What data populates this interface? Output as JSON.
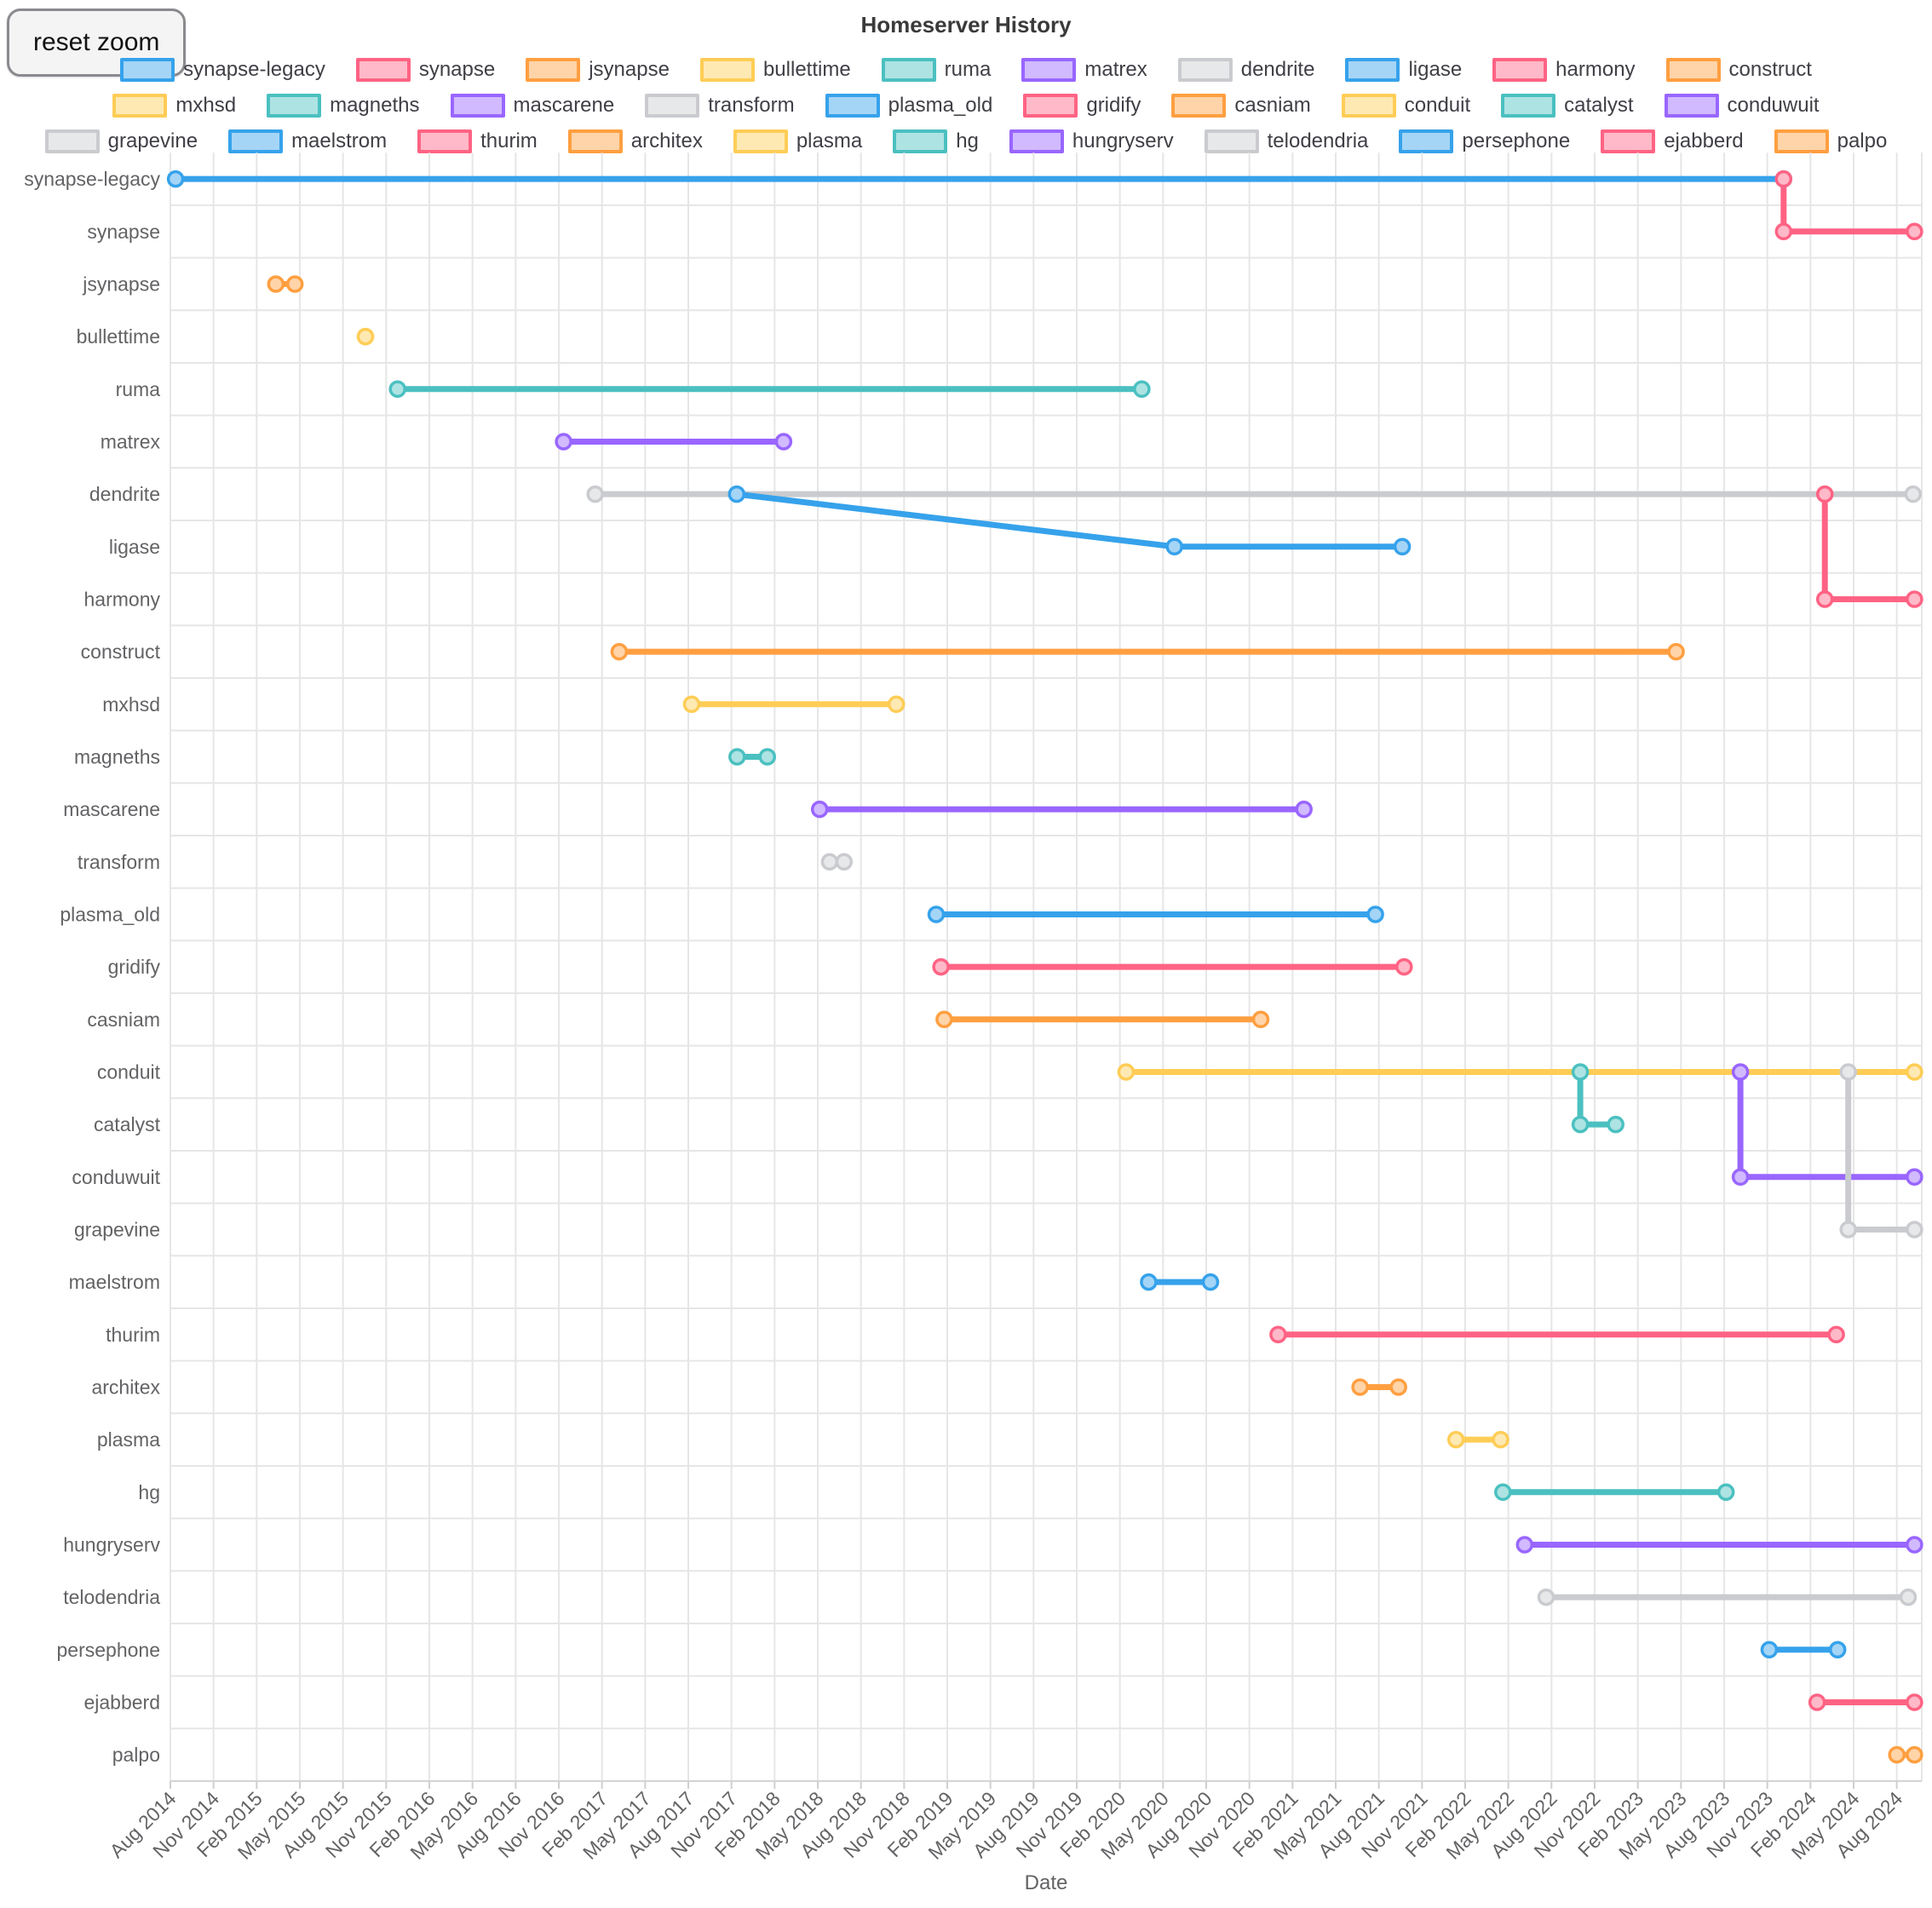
{
  "header": {
    "title": "Homeserver History",
    "reset_button": "reset zoom",
    "xlabel": "Date"
  },
  "chart_data": {
    "type": "line",
    "title": "Homeserver History",
    "xlabel": "Date",
    "legend_position": "top",
    "grid": true,
    "x_axis": {
      "start": "2014-08-01",
      "end_tick": "2024-08-01",
      "tick_interval_months": 3,
      "tick_labels": [
        "Aug 2014",
        "Nov 2014",
        "Feb 2015",
        "May 2015",
        "Aug 2015",
        "Nov 2015",
        "Feb 2016",
        "May 2016",
        "Aug 2016",
        "Nov 2016",
        "Feb 2017",
        "May 2017",
        "Aug 2017",
        "Nov 2017",
        "Feb 2018",
        "May 2018",
        "Aug 2018",
        "Nov 2018",
        "Feb 2019",
        "May 2019",
        "Aug 2019",
        "Nov 2019",
        "Feb 2020",
        "May 2020",
        "Aug 2020",
        "Nov 2020",
        "Feb 2021",
        "May 2021",
        "Aug 2021",
        "Nov 2021",
        "Feb 2022",
        "May 2022",
        "Aug 2022",
        "Nov 2022",
        "Feb 2023",
        "May 2023",
        "Aug 2023",
        "Nov 2023",
        "Feb 2024",
        "May 2024",
        "Aug 2024"
      ]
    },
    "categories": [
      "synapse-legacy",
      "synapse",
      "jsynapse",
      "bullettime",
      "ruma",
      "matrex",
      "dendrite",
      "ligase",
      "harmony",
      "construct",
      "mxhsd",
      "magneths",
      "mascarene",
      "transform",
      "plasma_old",
      "gridify",
      "casniam",
      "conduit",
      "catalyst",
      "conduwuit",
      "grapevine",
      "maelstrom",
      "thurim",
      "architex",
      "plasma",
      "hg",
      "hungryserv",
      "telodendria",
      "persephone",
      "ejabberd",
      "palpo"
    ],
    "palette": [
      "#36A2EB",
      "#FF6384",
      "#FF9F40",
      "#FFCD56",
      "#4BC0C0",
      "#9966FF",
      "#C9CBCF"
    ],
    "series": [
      {
        "name": "synapse-legacy",
        "color": "#36A2EB",
        "points": [
          {
            "date": "2014-08-12",
            "row": "synapse-legacy"
          },
          {
            "date": "2023-12-05",
            "row": "synapse-legacy"
          }
        ]
      },
      {
        "name": "synapse",
        "color": "#FF6384",
        "points": [
          {
            "date": "2023-12-05",
            "row": "synapse-legacy"
          },
          {
            "date": "2023-12-05",
            "row": "synapse"
          },
          {
            "date": "2024-09-08",
            "row": "synapse"
          }
        ]
      },
      {
        "name": "jsynapse",
        "color": "#FF9F40",
        "points": [
          {
            "date": "2015-03-11",
            "row": "jsynapse"
          },
          {
            "date": "2015-04-21",
            "row": "jsynapse"
          }
        ]
      },
      {
        "name": "bullettime",
        "color": "#FFCD56",
        "points": [
          {
            "date": "2015-09-18",
            "row": "bullettime"
          },
          {
            "date": "2015-09-18",
            "row": "bullettime"
          }
        ]
      },
      {
        "name": "ruma",
        "color": "#4BC0C0",
        "points": [
          {
            "date": "2015-11-25",
            "row": "ruma"
          },
          {
            "date": "2020-03-17",
            "row": "ruma"
          }
        ]
      },
      {
        "name": "matrex",
        "color": "#9966FF",
        "points": [
          {
            "date": "2016-11-11",
            "row": "matrex"
          },
          {
            "date": "2018-02-20",
            "row": "matrex"
          }
        ]
      },
      {
        "name": "dendrite",
        "color": "#C9CBCF",
        "points": [
          {
            "date": "2017-01-17",
            "row": "dendrite"
          },
          {
            "date": "2024-09-05",
            "row": "dendrite"
          }
        ]
      },
      {
        "name": "ligase",
        "color": "#36A2EB",
        "points": [
          {
            "date": "2017-11-12",
            "row": "dendrite"
          },
          {
            "date": "2020-05-25",
            "row": "ligase"
          },
          {
            "date": "2021-09-20",
            "row": "ligase"
          }
        ]
      },
      {
        "name": "harmony",
        "color": "#FF6384",
        "points": [
          {
            "date": "2024-03-01",
            "row": "dendrite"
          },
          {
            "date": "2024-03-01",
            "row": "harmony"
          },
          {
            "date": "2024-09-08",
            "row": "harmony"
          }
        ]
      },
      {
        "name": "construct",
        "color": "#FF9F40",
        "points": [
          {
            "date": "2017-03-07",
            "row": "construct"
          },
          {
            "date": "2023-04-21",
            "row": "construct"
          }
        ]
      },
      {
        "name": "mxhsd",
        "color": "#FFCD56",
        "points": [
          {
            "date": "2017-08-08",
            "row": "mxhsd"
          },
          {
            "date": "2018-10-15",
            "row": "mxhsd"
          }
        ]
      },
      {
        "name": "magneths",
        "color": "#4BC0C0",
        "points": [
          {
            "date": "2017-11-13",
            "row": "magneths"
          },
          {
            "date": "2018-01-16",
            "row": "magneths"
          }
        ]
      },
      {
        "name": "mascarene",
        "color": "#9966FF",
        "points": [
          {
            "date": "2018-05-05",
            "row": "mascarene"
          },
          {
            "date": "2021-02-25",
            "row": "mascarene"
          }
        ]
      },
      {
        "name": "transform",
        "color": "#C9CBCF",
        "points": [
          {
            "date": "2018-05-26",
            "row": "transform"
          },
          {
            "date": "2018-06-26",
            "row": "transform"
          }
        ]
      },
      {
        "name": "plasma_old",
        "color": "#36A2EB",
        "points": [
          {
            "date": "2019-01-08",
            "row": "plasma_old"
          },
          {
            "date": "2021-07-24",
            "row": "plasma_old"
          }
        ]
      },
      {
        "name": "gridify",
        "color": "#FF6384",
        "points": [
          {
            "date": "2019-01-18",
            "row": "gridify"
          },
          {
            "date": "2021-09-24",
            "row": "gridify"
          }
        ]
      },
      {
        "name": "casniam",
        "color": "#FF9F40",
        "points": [
          {
            "date": "2019-01-25",
            "row": "casniam"
          },
          {
            "date": "2020-11-25",
            "row": "casniam"
          }
        ]
      },
      {
        "name": "conduit",
        "color": "#FFCD56",
        "points": [
          {
            "date": "2020-02-14",
            "row": "conduit"
          },
          {
            "date": "2024-09-08",
            "row": "conduit"
          }
        ]
      },
      {
        "name": "catalyst",
        "color": "#4BC0C0",
        "points": [
          {
            "date": "2022-10-01",
            "row": "conduit"
          },
          {
            "date": "2022-10-01",
            "row": "catalyst"
          },
          {
            "date": "2022-12-15",
            "row": "catalyst"
          }
        ]
      },
      {
        "name": "conduwuit",
        "color": "#9966FF",
        "points": [
          {
            "date": "2023-09-05",
            "row": "conduit"
          },
          {
            "date": "2023-09-05",
            "row": "conduwuit"
          },
          {
            "date": "2024-09-08",
            "row": "conduwuit"
          }
        ]
      },
      {
        "name": "grapevine",
        "color": "#C9CBCF",
        "points": [
          {
            "date": "2024-04-20",
            "row": "conduit"
          },
          {
            "date": "2024-04-20",
            "row": "grapevine"
          },
          {
            "date": "2024-09-08",
            "row": "grapevine"
          }
        ]
      },
      {
        "name": "maelstrom",
        "color": "#36A2EB",
        "points": [
          {
            "date": "2020-04-01",
            "row": "maelstrom"
          },
          {
            "date": "2020-08-10",
            "row": "maelstrom"
          }
        ]
      },
      {
        "name": "thurim",
        "color": "#FF6384",
        "points": [
          {
            "date": "2021-01-01",
            "row": "thurim"
          },
          {
            "date": "2024-03-25",
            "row": "thurim"
          }
        ]
      },
      {
        "name": "architex",
        "color": "#FF9F40",
        "points": [
          {
            "date": "2021-06-22",
            "row": "architex"
          },
          {
            "date": "2021-09-12",
            "row": "architex"
          }
        ]
      },
      {
        "name": "plasma",
        "color": "#FFCD56",
        "points": [
          {
            "date": "2022-01-12",
            "row": "plasma"
          },
          {
            "date": "2022-04-15",
            "row": "plasma"
          }
        ]
      },
      {
        "name": "hg",
        "color": "#4BC0C0",
        "points": [
          {
            "date": "2022-04-20",
            "row": "hg"
          },
          {
            "date": "2023-08-05",
            "row": "hg"
          }
        ]
      },
      {
        "name": "hungryserv",
        "color": "#9966FF",
        "points": [
          {
            "date": "2022-06-05",
            "row": "hungryserv"
          },
          {
            "date": "2024-09-08",
            "row": "hungryserv"
          }
        ]
      },
      {
        "name": "telodendria",
        "color": "#C9CBCF",
        "points": [
          {
            "date": "2022-07-20",
            "row": "telodendria"
          },
          {
            "date": "2024-08-25",
            "row": "telodendria"
          }
        ]
      },
      {
        "name": "persephone",
        "color": "#36A2EB",
        "points": [
          {
            "date": "2023-11-05",
            "row": "persephone"
          },
          {
            "date": "2024-03-28",
            "row": "persephone"
          }
        ]
      },
      {
        "name": "ejabberd",
        "color": "#FF6384",
        "points": [
          {
            "date": "2024-02-15",
            "row": "ejabberd"
          },
          {
            "date": "2024-09-08",
            "row": "ejabberd"
          }
        ]
      },
      {
        "name": "palpo",
        "color": "#FF9F40",
        "points": [
          {
            "date": "2024-08-01",
            "row": "palpo"
          },
          {
            "date": "2024-09-08",
            "row": "palpo"
          }
        ]
      }
    ],
    "legend_row_breaks": [
      10,
      20
    ]
  }
}
